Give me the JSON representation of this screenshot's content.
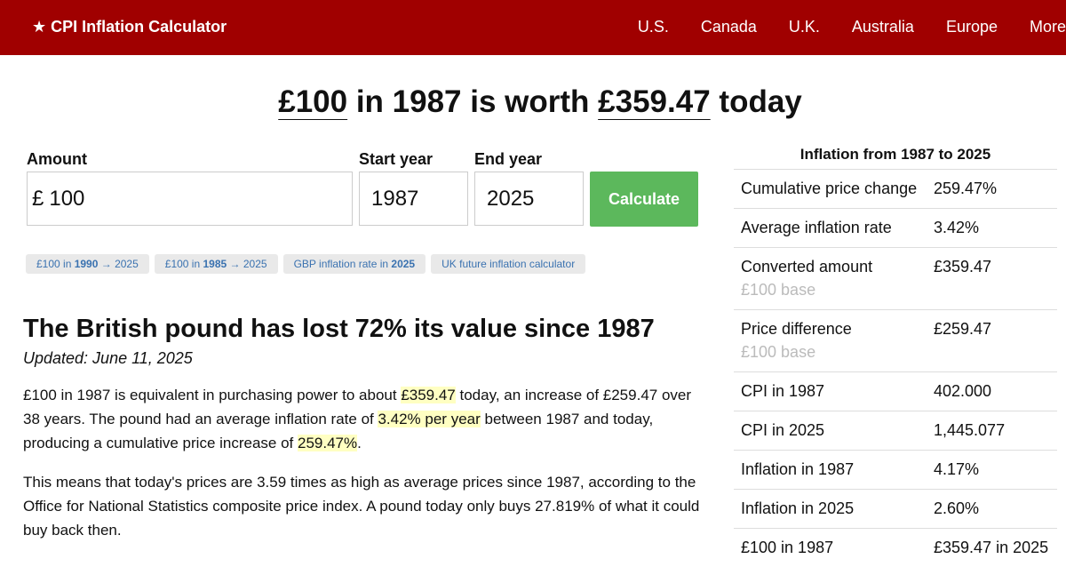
{
  "nav": {
    "brand": "★ CPI Inflation Calculator",
    "links": [
      "U.S.",
      "Canada",
      "U.K.",
      "Australia",
      "Europe",
      "More"
    ]
  },
  "headline": [
    "£100",
    " in 1987 is worth ",
    "£359.47",
    " today"
  ],
  "form": {
    "amount_label": "Amount",
    "start_label": "Start year",
    "end_label": "End year",
    "currency": "£",
    "amount": "100",
    "start": "1987",
    "end": "2025",
    "button": "Calculate"
  },
  "chips": [
    [
      "£100 in ",
      "1990",
      " → 2025"
    ],
    [
      "£100 in ",
      "1985",
      " → 2025"
    ],
    [
      "GBP inflation rate in ",
      "2025"
    ],
    [
      "UK future inflation calculator"
    ]
  ],
  "article": {
    "heading": "The British pound has lost 72% its value since 1987",
    "updated": "Updated: June 11, 2025",
    "paragraphs": [
      [
        "£100 in 1987 is equivalent in purchasing power to about ",
        "£359.47",
        " today, an increase of £259.47 over 38 years. The pound had an average inflation rate of ",
        "3.42% per year",
        " between 1987 and today, producing a cumulative price increase of ",
        "259.47%",
        "."
      ],
      [
        "This means that today's prices are 3.59 times as high as average prices since 1987, according to the Office for National Statistics composite price index. A pound today only buys 27.819% of what it could buy back then."
      ]
    ]
  },
  "sidebar": {
    "title": "Inflation from 1987 to 2025",
    "rows": [
      [
        "Cumulative price change",
        "259.47%"
      ],
      [
        "Average inflation rate",
        "3.42%"
      ],
      [
        "Converted amount",
        "£359.47",
        "£100 base"
      ],
      [
        "Price difference",
        "£259.47",
        "£100 base"
      ],
      [
        "CPI in 1987",
        "402.000"
      ],
      [
        "CPI in 2025",
        "1,445.077"
      ],
      [
        "Inflation in 1987",
        "4.17%"
      ],
      [
        "Inflation in 2025",
        "2.60%"
      ],
      [
        "£100 in 1987",
        "£359.47 in 2025"
      ]
    ]
  }
}
